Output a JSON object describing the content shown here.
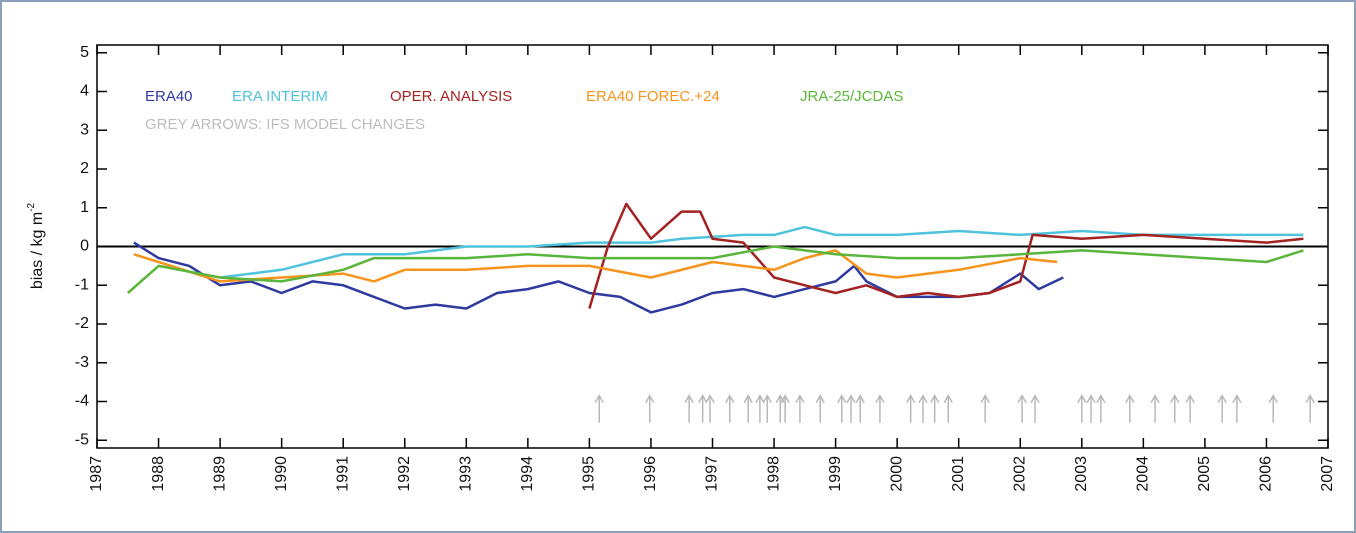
{
  "chart_data": {
    "type": "line",
    "ylabel": "bias / kg m",
    "ylabel_sup": "-2",
    "annotation": "GREY ARROWS: IFS MODEL CHANGES",
    "xlim": [
      1987,
      2007
    ],
    "xticks": [
      1987,
      1988,
      1989,
      1990,
      1991,
      1992,
      1993,
      1994,
      1995,
      1996,
      1997,
      1998,
      1999,
      2000,
      2001,
      2002,
      2003,
      2004,
      2005,
      2006,
      2007
    ],
    "ylim": [
      -5.2,
      5.2
    ],
    "yticks": [
      -5,
      -4,
      -3,
      -2,
      -1,
      0,
      1,
      2,
      3,
      4,
      5
    ],
    "arrows_color": "#b8b8b8",
    "arrows_x": [
      1995.16,
      1995.98,
      1996.62,
      1996.84,
      1996.96,
      1997.28,
      1997.58,
      1997.77,
      1997.89,
      1998.1,
      1998.18,
      1998.42,
      1998.75,
      1999.1,
      1999.25,
      1999.4,
      1999.72,
      2000.22,
      2000.42,
      2000.61,
      2000.83,
      2001.43,
      2002.03,
      2002.24,
      2003.0,
      2003.15,
      2003.31,
      2003.78,
      2004.19,
      2004.51,
      2004.76,
      2005.28,
      2005.52,
      2006.11,
      2006.71
    ],
    "series": [
      {
        "name": "ERA40",
        "color": "#2e3a9f",
        "x": [
          1987.6,
          1988,
          1988.5,
          1989,
          1989.5,
          1990,
          1990.5,
          1991,
          1991.5,
          1992,
          1992.5,
          1993,
          1993.5,
          1994,
          1994.5,
          1995,
          1995.5,
          1996,
          1996.5,
          1997,
          1997.5,
          1998,
          1998.5,
          1999,
          1999.3,
          1999.5,
          2000,
          2000.5,
          2001,
          2001.5,
          2002,
          2002.3,
          2002.7
        ],
        "values": [
          0.1,
          -0.3,
          -0.5,
          -1.0,
          -0.9,
          -1.2,
          -0.9,
          -1.0,
          -1.3,
          -1.6,
          -1.5,
          -1.6,
          -1.2,
          -1.1,
          -0.9,
          -1.2,
          -1.3,
          -1.7,
          -1.5,
          -1.2,
          -1.1,
          -1.3,
          -1.1,
          -0.9,
          -0.5,
          -0.9,
          -1.3,
          -1.3,
          -1.3,
          -1.2,
          -0.7,
          -1.1,
          -0.8
        ]
      },
      {
        "name": "ERA INTERIM",
        "color": "#4fc3dc",
        "x": [
          1989,
          1990,
          1991,
          1992,
          1993,
          1994,
          1995,
          1996,
          1996.5,
          1997.5,
          1998,
          1998.5,
          1999,
          2000,
          2001,
          2002,
          2003,
          2004,
          2005,
          2006,
          2006.6
        ],
        "values": [
          -0.8,
          -0.6,
          -0.2,
          -0.2,
          0.0,
          0.0,
          0.1,
          0.1,
          0.2,
          0.3,
          0.3,
          0.5,
          0.3,
          0.3,
          0.4,
          0.3,
          0.4,
          0.3,
          0.3,
          0.3,
          0.3
        ]
      },
      {
        "name": "OPER. ANALYSIS",
        "color": "#a32222",
        "x": [
          1995,
          1995.3,
          1995.6,
          1996,
          1996.5,
          1996.8,
          1997,
          1997.5,
          1998,
          1998.5,
          1999,
          1999.5,
          2000,
          2000.5,
          2001,
          2001.5,
          2002,
          2002.2,
          2003,
          2004,
          2005,
          2006,
          2006.6
        ],
        "values": [
          -1.6,
          0.0,
          1.1,
          0.2,
          0.9,
          0.9,
          0.2,
          0.1,
          -0.8,
          -1.0,
          -1.2,
          -1.0,
          -1.3,
          -1.2,
          -1.3,
          -1.2,
          -0.9,
          0.3,
          0.2,
          0.3,
          0.2,
          0.1,
          0.2
        ]
      },
      {
        "name": "ERA40 FOREC.+24",
        "color": "#f7941d",
        "x": [
          1987.6,
          1988,
          1989,
          1990,
          1991,
          1991.5,
          1992,
          1993,
          1994,
          1995,
          1996,
          1997,
          1998,
          1998.5,
          1999,
          1999.5,
          2000,
          2001,
          2002,
          2002.6
        ],
        "values": [
          -0.2,
          -0.4,
          -0.9,
          -0.8,
          -0.7,
          -0.9,
          -0.6,
          -0.6,
          -0.5,
          -0.5,
          -0.8,
          -0.4,
          -0.6,
          -0.3,
          -0.1,
          -0.7,
          -0.8,
          -0.6,
          -0.3,
          -0.4
        ]
      },
      {
        "name": "JRA-25/JCDAS",
        "color": "#5ab53a",
        "x": [
          1987.5,
          1988,
          1989,
          1990,
          1991,
          1991.5,
          1992,
          1993,
          1994,
          1995,
          1996,
          1997,
          1998,
          1999,
          2000,
          2001,
          2002,
          2003,
          2004,
          2005,
          2006,
          2006.6
        ],
        "values": [
          -1.2,
          -0.5,
          -0.8,
          -0.9,
          -0.6,
          -0.3,
          -0.3,
          -0.3,
          -0.2,
          -0.3,
          -0.3,
          -0.3,
          0.0,
          -0.2,
          -0.3,
          -0.3,
          -0.2,
          -0.1,
          -0.2,
          -0.3,
          -0.4,
          -0.1
        ]
      }
    ]
  }
}
